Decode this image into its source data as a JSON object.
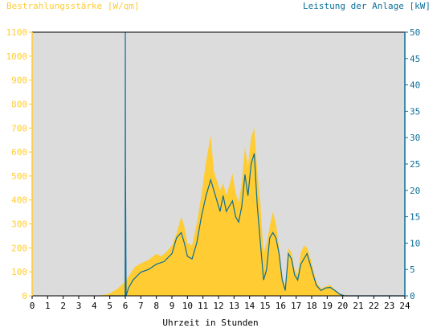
{
  "chart_data": {
    "type": "area",
    "title": "",
    "xlabel": "Uhrzeit in Stunden",
    "ylabel_left": "Bestrahlungsstärke [W/qm]",
    "ylabel_right": "Leistung der Anlage [kW]",
    "ylim_left": [
      0,
      1100
    ],
    "ylim_right": [
      0,
      50
    ],
    "yticks_left": [
      0,
      100,
      200,
      300,
      400,
      500,
      600,
      700,
      800,
      900,
      1000,
      1100
    ],
    "yticks_right": [
      0,
      5,
      10,
      15,
      20,
      25,
      30,
      35,
      40,
      45,
      50
    ],
    "xlim": [
      0,
      24
    ],
    "xticks": [
      0,
      1,
      2,
      3,
      4,
      5,
      6,
      7,
      8,
      9,
      10,
      11,
      12,
      13,
      14,
      15,
      16,
      17,
      18,
      19,
      20,
      21,
      22,
      23,
      24
    ],
    "grid": false,
    "colors": {
      "irradiance": "#ffcc33",
      "power": "#0b6e99",
      "plot_bg": "#dcdcdc",
      "left_axis": "#ffcc33",
      "right_axis": "#0b6e99",
      "frame": "#000000"
    },
    "series": [
      {
        "axis": "left",
        "x": [
          4.5,
          5.0,
          5.5,
          6.0,
          6.3,
          6.6,
          7.0,
          7.5,
          8.0,
          8.3,
          8.6,
          9.0,
          9.3,
          9.6,
          9.8,
          10.0,
          10.3,
          10.6,
          10.9,
          11.2,
          11.5,
          11.7,
          11.9,
          12.1,
          12.3,
          12.5,
          12.7,
          12.9,
          13.1,
          13.3,
          13.5,
          13.7,
          13.9,
          14.1,
          14.3,
          14.5,
          14.7,
          14.9,
          15.1,
          15.3,
          15.5,
          15.7,
          15.9,
          16.1,
          16.3,
          16.5,
          16.7,
          16.9,
          17.1,
          17.3,
          17.5,
          17.7,
          17.9,
          18.1,
          18.3,
          18.6,
          18.9,
          19.2,
          19.5,
          19.8,
          20.1,
          20.5
        ],
        "values": [
          2,
          10,
          30,
          60,
          90,
          120,
          135,
          150,
          175,
          165,
          180,
          210,
          260,
          330,
          290,
          220,
          210,
          300,
          420,
          560,
          670,
          520,
          480,
          440,
          470,
          420,
          460,
          510,
          430,
          390,
          470,
          620,
          540,
          660,
          700,
          520,
          380,
          180,
          220,
          290,
          350,
          300,
          200,
          80,
          40,
          200,
          180,
          110,
          90,
          180,
          210,
          200,
          160,
          110,
          60,
          30,
          40,
          45,
          25,
          10,
          3,
          0
        ]
      },
      {
        "axis": "right",
        "x": [
          5.0,
          5.99,
          6.0,
          6.01,
          6.05,
          6.2,
          6.5,
          7.0,
          7.5,
          8.0,
          8.5,
          9.0,
          9.3,
          9.6,
          9.8,
          10.0,
          10.3,
          10.6,
          10.9,
          11.2,
          11.5,
          11.7,
          11.9,
          12.1,
          12.3,
          12.5,
          12.7,
          12.9,
          13.1,
          13.3,
          13.5,
          13.7,
          13.9,
          14.1,
          14.3,
          14.5,
          14.7,
          14.9,
          15.1,
          15.3,
          15.5,
          15.7,
          15.9,
          16.1,
          16.3,
          16.5,
          16.7,
          16.9,
          17.1,
          17.3,
          17.5,
          17.7,
          17.9,
          18.1,
          18.3,
          18.6,
          18.9,
          19.2,
          19.5,
          19.8,
          20.1,
          20.5,
          21.0,
          24.0
        ],
        "values": [
          0,
          0,
          50,
          25,
          0,
          1.5,
          3,
          4.5,
          5,
          6,
          6.5,
          8,
          11,
          12,
          10,
          7.5,
          7,
          10,
          15,
          19,
          22,
          20,
          18,
          16,
          19,
          16,
          17,
          18,
          15,
          14,
          17,
          23,
          19,
          25,
          27,
          17,
          10,
          3,
          5,
          11,
          12,
          11,
          8,
          3,
          1,
          8,
          7,
          4,
          3,
          6,
          7,
          8,
          6,
          4,
          2,
          1,
          1.5,
          1.6,
          1,
          0.3,
          0,
          0,
          0,
          0
        ]
      }
    ]
  }
}
